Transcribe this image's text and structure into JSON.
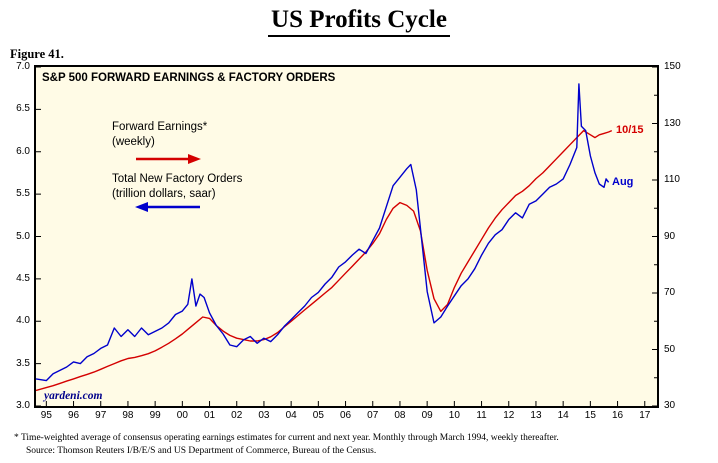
{
  "page": {
    "title": "US Profits Cycle",
    "figure_label": "Figure 41.",
    "footnotes": [
      "* Time-weighted average of consensus operating earnings estimates for current and next year. Monthly through March 1994, weekly thereafter.",
      "Source: Thomson Reuters I/B/E/S and US Department of Commerce, Bureau of the Census."
    ]
  },
  "chart_data": {
    "type": "line",
    "title": "S&P 500 FORWARD EARNINGS & FACTORY ORDERS",
    "watermark": "yardeni.com",
    "watermark_color": "#00008b",
    "plot_bg": "#fffbe6",
    "x_range": [
      1994.62,
      2017.45
    ],
    "x_ticks": [
      1995,
      1996,
      1997,
      1998,
      1999,
      2000,
      2001,
      2002,
      2003,
      2004,
      2005,
      2006,
      2007,
      2008,
      2009,
      2010,
      2011,
      2012,
      2013,
      2014,
      2015,
      2016,
      2017
    ],
    "x_tick_labels": [
      "95",
      "96",
      "97",
      "98",
      "99",
      "00",
      "01",
      "02",
      "03",
      "04",
      "05",
      "06",
      "07",
      "08",
      "09",
      "10",
      "11",
      "12",
      "13",
      "14",
      "15",
      "16",
      "17"
    ],
    "left_axis": {
      "min": 3.0,
      "max": 7.0,
      "labeled_ticks": [
        7.0,
        6.5,
        6.0,
        5.5,
        5.0,
        4.5,
        4.0,
        3.5,
        3.0
      ]
    },
    "right_axis": {
      "min": 30,
      "max": 150,
      "labeled_ticks": [
        150,
        130,
        110,
        90,
        70,
        50,
        30
      ],
      "minor_ticks": [
        140,
        120,
        100,
        80,
        60,
        40
      ]
    },
    "series": [
      {
        "id": "forward-earnings",
        "name": "Forward Earnings*",
        "sublabel": "(weekly)",
        "axis": "right",
        "color": "#d40000",
        "end_label": "10/15",
        "x": [
          1994.62,
          1995.0,
          1995.25,
          1995.5,
          1995.75,
          1996.0,
          1996.25,
          1996.5,
          1996.75,
          1997.0,
          1997.25,
          1997.5,
          1997.75,
          1998.0,
          1998.25,
          1998.5,
          1998.75,
          1999.0,
          1999.25,
          1999.5,
          1999.75,
          2000.0,
          2000.25,
          2000.5,
          2000.75,
          2001.0,
          2001.25,
          2001.5,
          2001.75,
          2002.0,
          2002.25,
          2002.5,
          2002.75,
          2003.0,
          2003.25,
          2003.5,
          2003.75,
          2004.0,
          2004.25,
          2004.5,
          2004.75,
          2005.0,
          2005.25,
          2005.5,
          2005.75,
          2006.0,
          2006.25,
          2006.5,
          2006.75,
          2007.0,
          2007.25,
          2007.5,
          2007.75,
          2008.0,
          2008.25,
          2008.5,
          2008.75,
          2009.0,
          2009.25,
          2009.5,
          2009.75,
          2010.0,
          2010.25,
          2010.5,
          2010.75,
          2011.0,
          2011.25,
          2011.5,
          2011.75,
          2012.0,
          2012.25,
          2012.5,
          2012.75,
          2013.0,
          2013.25,
          2013.5,
          2013.75,
          2014.0,
          2014.25,
          2014.5,
          2014.75,
          2015.0,
          2015.17,
          2015.33,
          2015.5,
          2015.67,
          2015.79
        ],
        "values": [
          35.5,
          36.5,
          37.2,
          38.0,
          38.8,
          39.6,
          40.4,
          41.2,
          42.0,
          43.0,
          44.0,
          45.0,
          46.0,
          46.8,
          47.2,
          47.8,
          48.5,
          49.5,
          50.8,
          52.2,
          53.8,
          55.5,
          57.5,
          59.5,
          61.5,
          61.0,
          58.5,
          56.5,
          55.0,
          54.0,
          53.5,
          53.0,
          53.0,
          53.5,
          54.5,
          56.0,
          58.0,
          60.0,
          62.0,
          64.0,
          66.0,
          68.0,
          70.0,
          72.0,
          74.5,
          77.0,
          79.5,
          82.0,
          84.5,
          87.5,
          91.0,
          96.0,
          100.0,
          102.0,
          101.0,
          99.0,
          92.0,
          78.0,
          68.0,
          63.5,
          66.0,
          72.0,
          77.0,
          81.0,
          85.0,
          89.0,
          93.0,
          96.5,
          99.5,
          102.0,
          104.5,
          106.0,
          108.0,
          110.5,
          112.5,
          115.0,
          117.5,
          120.0,
          122.5,
          125.0,
          127.5,
          126.0,
          125.0,
          126.0,
          126.5,
          127.0,
          127.5
        ]
      },
      {
        "id": "factory-orders",
        "name": "Total New Factory Orders",
        "sublabel": "(trillion dollars, saar)",
        "axis": "left",
        "color": "#0000cc",
        "end_label": "Aug",
        "x": [
          1994.62,
          1995.0,
          1995.25,
          1995.5,
          1995.75,
          1996.0,
          1996.25,
          1996.5,
          1996.75,
          1997.0,
          1997.25,
          1997.5,
          1997.75,
          1998.0,
          1998.25,
          1998.5,
          1998.75,
          1999.0,
          1999.25,
          1999.5,
          1999.75,
          2000.0,
          2000.2,
          2000.35,
          2000.5,
          2000.65,
          2000.8,
          2001.0,
          2001.25,
          2001.5,
          2001.75,
          2002.0,
          2002.25,
          2002.5,
          2002.75,
          2003.0,
          2003.25,
          2003.5,
          2003.75,
          2004.0,
          2004.25,
          2004.5,
          2004.75,
          2005.0,
          2005.25,
          2005.5,
          2005.75,
          2006.0,
          2006.25,
          2006.5,
          2006.75,
          2007.0,
          2007.25,
          2007.5,
          2007.75,
          2008.0,
          2008.25,
          2008.4,
          2008.6,
          2008.75,
          2009.0,
          2009.25,
          2009.5,
          2009.75,
          2010.0,
          2010.25,
          2010.5,
          2010.75,
          2011.0,
          2011.25,
          2011.5,
          2011.75,
          2012.0,
          2012.25,
          2012.5,
          2012.75,
          2013.0,
          2013.25,
          2013.5,
          2013.75,
          2014.0,
          2014.25,
          2014.5,
          2014.58,
          2014.67,
          2014.83,
          2015.0,
          2015.17,
          2015.33,
          2015.5,
          2015.58,
          2015.67
        ],
        "values": [
          3.32,
          3.3,
          3.38,
          3.42,
          3.46,
          3.52,
          3.5,
          3.58,
          3.62,
          3.68,
          3.72,
          3.92,
          3.82,
          3.9,
          3.82,
          3.92,
          3.84,
          3.88,
          3.92,
          3.98,
          4.08,
          4.12,
          4.2,
          4.5,
          4.18,
          4.32,
          4.28,
          4.1,
          3.95,
          3.85,
          3.72,
          3.7,
          3.78,
          3.82,
          3.74,
          3.8,
          3.76,
          3.84,
          3.94,
          4.02,
          4.1,
          4.18,
          4.28,
          4.34,
          4.44,
          4.52,
          4.64,
          4.7,
          4.78,
          4.85,
          4.8,
          4.95,
          5.1,
          5.35,
          5.6,
          5.7,
          5.8,
          5.85,
          5.55,
          5.1,
          4.35,
          3.98,
          4.05,
          4.18,
          4.3,
          4.42,
          4.5,
          4.62,
          4.78,
          4.92,
          5.02,
          5.08,
          5.2,
          5.28,
          5.22,
          5.38,
          5.42,
          5.5,
          5.58,
          5.62,
          5.68,
          5.85,
          6.05,
          6.8,
          6.3,
          6.25,
          5.95,
          5.75,
          5.62,
          5.58,
          5.68,
          5.64
        ]
      }
    ]
  }
}
